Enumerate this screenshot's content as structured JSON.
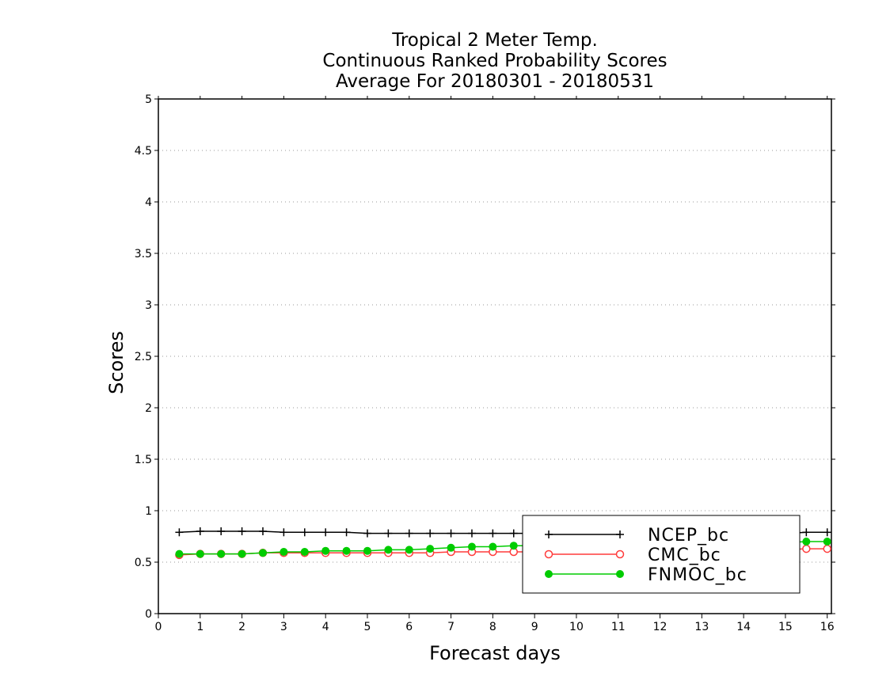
{
  "chart_data": {
    "type": "line",
    "title_lines": [
      "Tropical 2 Meter Temp.",
      "Continuous Ranked Probability Scores",
      "Average For 20180301 - 20180531"
    ],
    "xlabel": "Forecast days",
    "ylabel": "Scores",
    "xlim": [
      0,
      16.1
    ],
    "ylim": [
      0,
      5
    ],
    "x_ticks": [
      0,
      1,
      2,
      3,
      4,
      5,
      6,
      7,
      8,
      9,
      10,
      11,
      12,
      13,
      14,
      15,
      16
    ],
    "y_ticks": [
      0,
      0.5,
      1,
      1.5,
      2,
      2.5,
      3,
      3.5,
      4,
      4.5,
      5
    ],
    "y_tick_labels": [
      "0",
      "0.5",
      "1",
      "1.5",
      "2",
      "2.5",
      "3",
      "3.5",
      "4",
      "4.5",
      "5"
    ],
    "grid": "horizontal dotted",
    "legend_position": "bottom-right",
    "x": [
      0.5,
      1,
      1.5,
      2,
      2.5,
      3,
      3.5,
      4,
      4.5,
      5,
      5.5,
      6,
      6.5,
      7,
      7.5,
      8,
      8.5,
      9,
      9.5,
      10,
      10.5,
      11,
      11.5,
      12,
      12.5,
      13,
      13.5,
      14,
      14.5,
      15,
      15.5,
      16
    ],
    "series": [
      {
        "name": "NCEP_bc",
        "color": "#000000",
        "marker": "plus",
        "values": [
          0.79,
          0.8,
          0.8,
          0.8,
          0.8,
          0.79,
          0.79,
          0.79,
          0.79,
          0.78,
          0.78,
          0.78,
          0.78,
          0.78,
          0.78,
          0.78,
          0.78,
          0.78,
          0.78,
          0.78,
          0.78,
          0.78,
          0.78,
          0.78,
          0.78,
          0.78,
          0.78,
          0.78,
          0.78,
          0.78,
          0.79,
          0.79
        ]
      },
      {
        "name": "CMC_bc",
        "color": "#ff3b3b",
        "marker": "open-circle",
        "values": [
          0.57,
          0.58,
          0.58,
          0.58,
          0.59,
          0.59,
          0.59,
          0.59,
          0.59,
          0.59,
          0.59,
          0.59,
          0.59,
          0.6,
          0.6,
          0.6,
          0.6,
          0.6,
          0.6,
          0.6,
          0.6,
          0.61,
          0.61,
          0.61,
          0.61,
          0.61,
          0.62,
          0.62,
          0.62,
          0.62,
          0.63,
          0.63
        ]
      },
      {
        "name": "FNMOC_bc",
        "color": "#00cc00",
        "marker": "filled-circle",
        "values": [
          0.58,
          0.58,
          0.58,
          0.58,
          0.59,
          0.6,
          0.6,
          0.61,
          0.61,
          0.61,
          0.62,
          0.62,
          0.63,
          0.64,
          0.65,
          0.65,
          0.66,
          0.66,
          0.67,
          0.67,
          0.67,
          0.67,
          0.68,
          0.68,
          0.68,
          0.68,
          0.69,
          0.69,
          0.69,
          0.69,
          0.7,
          0.7
        ]
      }
    ]
  }
}
